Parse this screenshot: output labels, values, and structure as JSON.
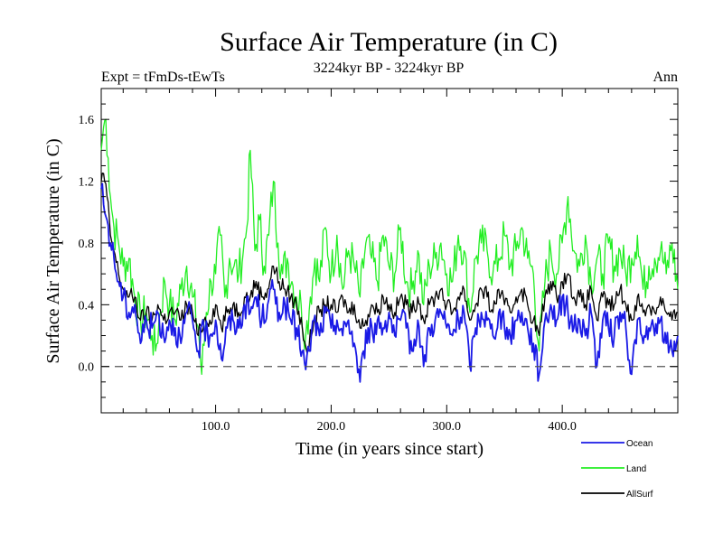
{
  "chart_data": {
    "type": "line",
    "title": "Surface Air Temperature (in C)",
    "subtitle": "3224kyr BP - 3224kyr BP",
    "left_label": "Expt = tFmDs-tEwTs",
    "right_label": "Ann",
    "xlabel": "Time (in years since start)",
    "ylabel": "Surface Air Temperature (in C)",
    "xlim": [
      1,
      500
    ],
    "ylim": [
      -0.3,
      1.8
    ],
    "xticks": [
      {
        "value": 100,
        "label": "100.0"
      },
      {
        "value": 200,
        "label": "200.0"
      },
      {
        "value": 300,
        "label": "300.0"
      },
      {
        "value": 400,
        "label": "400.0"
      }
    ],
    "yticks": [
      {
        "value": 0.0,
        "label": "0.0"
      },
      {
        "value": 0.4,
        "label": "0.4"
      },
      {
        "value": 0.8,
        "label": "0.8"
      },
      {
        "value": 1.2,
        "label": "1.2"
      },
      {
        "value": 1.6,
        "label": "1.6"
      }
    ],
    "reference_line": 0.0,
    "legend_position": "below-right",
    "series": [
      {
        "name": "Ocean",
        "color": "#1a1ae6",
        "x": [
          1,
          3,
          6,
          9,
          12,
          16,
          20,
          25,
          30,
          35,
          40,
          45,
          50,
          55,
          60,
          65,
          70,
          75,
          80,
          85,
          90,
          95,
          100,
          105,
          110,
          115,
          120,
          125,
          130,
          135,
          140,
          145,
          150,
          155,
          160,
          165,
          170,
          175,
          178,
          181,
          185,
          190,
          195,
          200,
          205,
          210,
          215,
          220,
          225,
          228,
          232,
          236,
          240,
          245,
          250,
          255,
          260,
          265,
          270,
          275,
          280,
          285,
          290,
          295,
          300,
          305,
          310,
          315,
          320,
          325,
          330,
          335,
          340,
          345,
          350,
          355,
          360,
          365,
          370,
          375,
          380,
          385,
          390,
          395,
          400,
          405,
          410,
          415,
          420,
          425,
          430,
          435,
          440,
          445,
          450,
          455,
          460,
          465,
          470,
          475,
          480,
          485,
          490,
          495,
          500
        ],
        "values": [
          1.15,
          1.05,
          0.95,
          0.8,
          0.7,
          0.55,
          0.45,
          0.35,
          0.4,
          0.15,
          0.3,
          0.25,
          0.35,
          0.2,
          0.3,
          0.25,
          0.15,
          0.35,
          0.3,
          0.1,
          0.25,
          0.2,
          0.3,
          0.05,
          0.25,
          0.3,
          0.25,
          0.4,
          0.35,
          0.45,
          0.3,
          0.4,
          0.5,
          0.35,
          0.4,
          0.3,
          0.25,
          0.1,
          -0.02,
          0.1,
          0.3,
          0.2,
          0.35,
          0.25,
          0.3,
          0.2,
          0.3,
          0.15,
          -0.1,
          0.1,
          0.25,
          0.2,
          0.3,
          0.25,
          0.35,
          0.2,
          0.3,
          0.25,
          0.1,
          0.3,
          0.0,
          0.25,
          0.3,
          0.35,
          0.25,
          0.2,
          0.3,
          0.35,
          0.0,
          0.25,
          0.35,
          0.3,
          0.2,
          0.35,
          0.25,
          0.2,
          0.3,
          0.35,
          0.25,
          0.15,
          -0.05,
          0.3,
          0.4,
          0.3,
          0.45,
          0.35,
          0.25,
          0.3,
          0.2,
          0.35,
          0.0,
          0.3,
          0.25,
          0.2,
          0.35,
          0.25,
          -0.05,
          0.3,
          0.15,
          0.25,
          0.2,
          0.3,
          0.15,
          0.1,
          0.2
        ]
      },
      {
        "name": "Land",
        "color": "#22ee22",
        "x": [
          1,
          3,
          5,
          7,
          9,
          12,
          16,
          20,
          25,
          30,
          35,
          40,
          45,
          48,
          52,
          56,
          60,
          65,
          70,
          75,
          80,
          85,
          88,
          92,
          96,
          100,
          104,
          108,
          112,
          116,
          120,
          124,
          127,
          130,
          134,
          138,
          142,
          146,
          150,
          154,
          158,
          162,
          166,
          170,
          174,
          178,
          182,
          186,
          190,
          195,
          200,
          205,
          210,
          215,
          220,
          225,
          230,
          235,
          240,
          245,
          250,
          255,
          260,
          265,
          270,
          275,
          280,
          285,
          290,
          295,
          300,
          305,
          310,
          315,
          320,
          325,
          330,
          335,
          340,
          345,
          350,
          355,
          360,
          365,
          370,
          375,
          380,
          385,
          390,
          395,
          400,
          405,
          410,
          415,
          420,
          425,
          430,
          435,
          440,
          445,
          450,
          455,
          460,
          465,
          470,
          475,
          480,
          485,
          490,
          495,
          500
        ],
        "values": [
          1.4,
          1.55,
          1.6,
          1.35,
          1.1,
          0.9,
          0.8,
          0.65,
          0.7,
          0.45,
          0.3,
          0.35,
          0.2,
          0.1,
          0.35,
          0.55,
          0.4,
          0.3,
          0.5,
          0.65,
          0.45,
          0.25,
          -0.05,
          0.35,
          0.55,
          0.6,
          0.85,
          0.45,
          0.7,
          0.65,
          0.6,
          0.75,
          0.9,
          1.4,
          0.75,
          0.95,
          0.65,
          0.85,
          1.2,
          0.8,
          0.6,
          0.7,
          0.55,
          0.45,
          0.4,
          0.2,
          0.45,
          0.7,
          0.55,
          0.9,
          0.6,
          0.85,
          0.5,
          0.75,
          0.65,
          0.45,
          0.8,
          0.7,
          0.55,
          0.85,
          0.65,
          0.6,
          0.9,
          0.55,
          0.5,
          0.75,
          0.4,
          0.65,
          0.7,
          0.8,
          0.6,
          0.55,
          0.85,
          0.75,
          0.35,
          0.7,
          0.8,
          0.75,
          0.6,
          0.7,
          0.85,
          0.65,
          0.75,
          0.9,
          0.7,
          0.6,
          0.1,
          0.55,
          0.75,
          0.6,
          0.8,
          1.1,
          0.75,
          0.65,
          0.85,
          0.55,
          0.7,
          0.6,
          0.8,
          0.65,
          0.75,
          0.6,
          0.7,
          0.85,
          0.5,
          0.65,
          0.7,
          0.75,
          0.6,
          0.8,
          0.5
        ]
      },
      {
        "name": "AllSurf",
        "color": "#000000",
        "x": [
          1,
          3,
          6,
          9,
          12,
          16,
          20,
          25,
          30,
          35,
          40,
          45,
          50,
          55,
          60,
          65,
          70,
          75,
          80,
          85,
          90,
          95,
          100,
          105,
          110,
          115,
          120,
          125,
          130,
          135,
          140,
          145,
          150,
          155,
          160,
          165,
          170,
          175,
          180,
          185,
          190,
          195,
          200,
          205,
          210,
          215,
          220,
          225,
          230,
          235,
          240,
          245,
          250,
          255,
          260,
          265,
          270,
          275,
          280,
          285,
          290,
          295,
          300,
          305,
          310,
          315,
          320,
          325,
          330,
          335,
          340,
          345,
          350,
          355,
          360,
          365,
          370,
          375,
          380,
          385,
          390,
          395,
          400,
          405,
          410,
          415,
          420,
          425,
          430,
          435,
          440,
          445,
          450,
          455,
          460,
          465,
          470,
          475,
          480,
          485,
          490,
          495,
          500
        ],
        "values": [
          1.2,
          1.25,
          1.1,
          0.85,
          0.75,
          0.6,
          0.5,
          0.45,
          0.45,
          0.3,
          0.35,
          0.3,
          0.4,
          0.3,
          0.35,
          0.35,
          0.3,
          0.4,
          0.35,
          0.2,
          0.3,
          0.3,
          0.4,
          0.25,
          0.35,
          0.4,
          0.35,
          0.45,
          0.45,
          0.55,
          0.45,
          0.5,
          0.65,
          0.55,
          0.5,
          0.45,
          0.4,
          0.25,
          0.1,
          0.3,
          0.35,
          0.4,
          0.4,
          0.35,
          0.45,
          0.35,
          0.4,
          0.25,
          0.3,
          0.4,
          0.35,
          0.45,
          0.4,
          0.35,
          0.45,
          0.4,
          0.35,
          0.45,
          0.3,
          0.4,
          0.45,
          0.5,
          0.4,
          0.35,
          0.45,
          0.5,
          0.3,
          0.4,
          0.5,
          0.45,
          0.35,
          0.5,
          0.4,
          0.35,
          0.45,
          0.5,
          0.4,
          0.3,
          0.2,
          0.45,
          0.55,
          0.45,
          0.55,
          0.6,
          0.45,
          0.45,
          0.4,
          0.5,
          0.3,
          0.45,
          0.4,
          0.4,
          0.5,
          0.4,
          0.3,
          0.45,
          0.35,
          0.4,
          0.35,
          0.45,
          0.35,
          0.3,
          0.35
        ]
      }
    ]
  }
}
